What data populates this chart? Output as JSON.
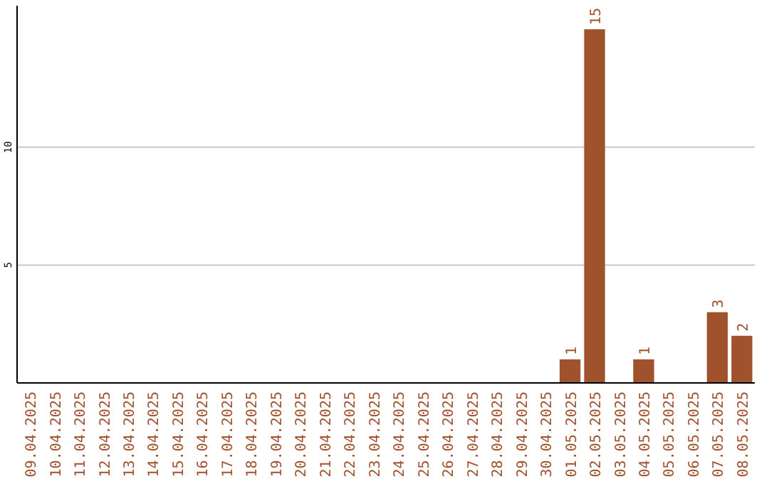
{
  "chart_data": {
    "type": "bar",
    "categories": [
      "09.04.2025",
      "10.04.2025",
      "11.04.2025",
      "12.04.2025",
      "13.04.2025",
      "14.04.2025",
      "15.04.2025",
      "16.04.2025",
      "17.04.2025",
      "18.04.2025",
      "19.04.2025",
      "20.04.2025",
      "21.04.2025",
      "22.04.2025",
      "23.04.2025",
      "24.04.2025",
      "25.04.2025",
      "26.04.2025",
      "27.04.2025",
      "28.04.2025",
      "29.04.2025",
      "30.04.2025",
      "01.05.2025",
      "02.05.2025",
      "03.05.2025",
      "04.05.2025",
      "05.05.2025",
      "06.05.2025",
      "07.05.2025",
      "08.05.2025"
    ],
    "values": [
      0,
      0,
      0,
      0,
      0,
      0,
      0,
      0,
      0,
      0,
      0,
      0,
      0,
      0,
      0,
      0,
      0,
      0,
      0,
      0,
      0,
      0,
      1,
      15,
      0,
      1,
      0,
      0,
      3,
      2
    ],
    "value_labels": [
      null,
      null,
      null,
      null,
      null,
      null,
      null,
      null,
      null,
      null,
      null,
      null,
      null,
      null,
      null,
      null,
      null,
      null,
      null,
      null,
      null,
      null,
      "1",
      "15",
      null,
      "1",
      null,
      null,
      "3",
      "2"
    ],
    "color": "#a0522d",
    "ylim": [
      0,
      16
    ],
    "yticks": [
      5,
      10
    ],
    "grid": "y"
  }
}
